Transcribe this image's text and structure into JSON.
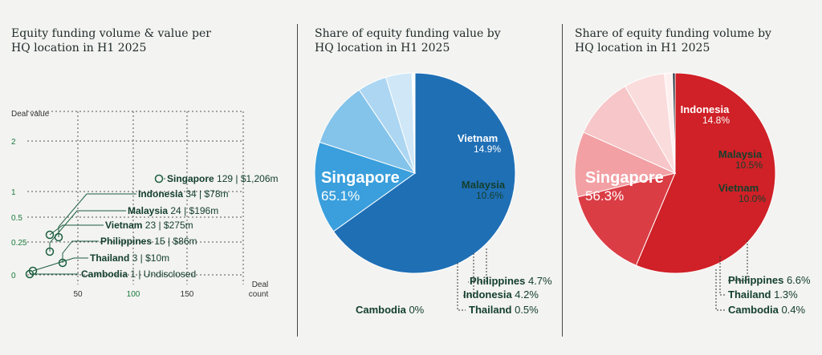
{
  "panels": {
    "left_title": [
      "Equity funding volume & value per",
      "HQ location in H1 2025"
    ],
    "mid_title": [
      "Share of equity funding value by",
      "HQ location in H1 2025"
    ],
    "right_title": [
      "Share of equity funding volume by",
      "HQ location in H1 2025"
    ]
  },
  "colors": {
    "accent_green": "#1b5e3f",
    "blue_shades": [
      "#1f6fb5",
      "#3a9fdc",
      "#84c3ea",
      "#acd6f2",
      "#cfe7f7",
      "#ffffff"
    ],
    "red_shades": [
      "#cf2127",
      "#db3d45",
      "#f2a0a4",
      "#f7c6c8",
      "#fbdcdd",
      "#fff0f0",
      "#1c2a36"
    ]
  },
  "chart_data": [
    {
      "type": "scatter",
      "title": "Equity funding volume & value per HQ location in H1 2025",
      "ylabel": "Deal value",
      "xlabel": "Deal count",
      "y_ticks": [
        "2",
        "1",
        "0.5",
        "0.25",
        "0"
      ],
      "x_ticks": [
        "50",
        "100",
        "150"
      ],
      "grid": true,
      "points": [
        {
          "name": "Singapore",
          "count": 129,
          "value_text": "129 | $1,206m"
        },
        {
          "name": "Indonesia",
          "count": 34,
          "value_text": "34 | $78m"
        },
        {
          "name": "Malaysia",
          "count": 24,
          "value_text": "24 | $196m"
        },
        {
          "name": "Vietnam",
          "count": 23,
          "value_text": "23 | $275m"
        },
        {
          "name": "Philippines",
          "count": 15,
          "value_text": "15 | $86m"
        },
        {
          "name": "Thailand",
          "count": 3,
          "value_text": "3 | $10m"
        },
        {
          "name": "Cambodia",
          "count": 1,
          "value_text": "1 | Undisclosed"
        }
      ]
    },
    {
      "type": "pie",
      "title": "Share of equity funding value by HQ location in H1 2025",
      "slices": [
        {
          "name": "Singapore",
          "value": 65.1,
          "label": "65.1%"
        },
        {
          "name": "Vietnam",
          "value": 14.9,
          "label": "14.9%"
        },
        {
          "name": "Malaysia",
          "value": 10.6,
          "label": "10.6%"
        },
        {
          "name": "Philippines",
          "value": 4.7,
          "label": "4.7%"
        },
        {
          "name": "Indonesia",
          "value": 4.2,
          "label": "4.2%"
        },
        {
          "name": "Thailand",
          "value": 0.5,
          "label": "0.5%"
        },
        {
          "name": "Cambodia",
          "value": 0,
          "label": "0%"
        }
      ]
    },
    {
      "type": "pie",
      "title": "Share of equity funding volume by HQ location in H1 2025",
      "slices": [
        {
          "name": "Singapore",
          "value": 56.3,
          "label": "56.3%"
        },
        {
          "name": "Indonesia",
          "value": 14.8,
          "label": "14.8%"
        },
        {
          "name": "Malaysia",
          "value": 10.5,
          "label": "10.5%"
        },
        {
          "name": "Vietnam",
          "value": 10.0,
          "label": "10.0%"
        },
        {
          "name": "Philippines",
          "value": 6.6,
          "label": "6.6%"
        },
        {
          "name": "Thailand",
          "value": 1.3,
          "label": "1.3%"
        },
        {
          "name": "Cambodia",
          "value": 0.4,
          "label": "0.4%"
        }
      ]
    }
  ]
}
